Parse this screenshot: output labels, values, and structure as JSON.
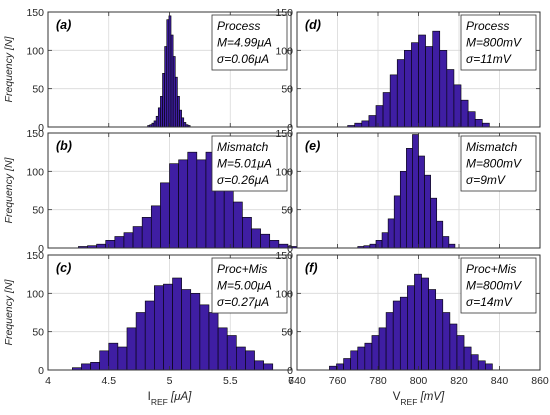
{
  "chart_data": [
    {
      "type": "bar",
      "panel_label": "(a)",
      "ylabel": "Frequency [N]",
      "xlim": [
        4,
        6
      ],
      "ylim": [
        0,
        150
      ],
      "yticks": [
        "0",
        "50",
        "100",
        "150"
      ],
      "grid": true,
      "annotation": [
        "Process",
        "M=4.99μA",
        "σ=0.06μA"
      ],
      "bin_edges_start": 4.82,
      "bin_width": 0.0175,
      "values": [
        2,
        3,
        5,
        8,
        14,
        25,
        40,
        70,
        105,
        140,
        145,
        120,
        92,
        65,
        40,
        22,
        12,
        6,
        3,
        2
      ]
    },
    {
      "type": "bar",
      "panel_label": "(b)",
      "ylabel": "Frequency [N]",
      "xlim": [
        4,
        6
      ],
      "ylim": [
        0,
        150
      ],
      "yticks": [
        "0",
        "50",
        "100",
        "150"
      ],
      "grid": true,
      "annotation": [
        "Mismatch",
        "M=5.01μA",
        "σ=0.26μA"
      ],
      "bin_edges_start": 4.25,
      "bin_width": 0.075,
      "values": [
        2,
        3,
        5,
        10,
        15,
        20,
        28,
        40,
        55,
        85,
        110,
        115,
        125,
        115,
        125,
        115,
        80,
        60,
        40,
        25,
        18,
        10,
        5,
        2
      ]
    },
    {
      "type": "bar",
      "panel_label": "(c)",
      "ylabel": "Frequency [N]",
      "xlabel": "I_REF [μA]",
      "xlim": [
        4,
        6
      ],
      "ylim": [
        0,
        150
      ],
      "xticks": [
        "4",
        "4.5",
        "5",
        "5.5",
        "6"
      ],
      "yticks": [
        "0",
        "50",
        "100",
        "150"
      ],
      "grid": true,
      "annotation": [
        "Proc+Mis",
        "M=5.00μA",
        "σ=0.27μA"
      ],
      "bin_edges_start": 4.2,
      "bin_width": 0.075,
      "values": [
        3,
        8,
        10,
        25,
        35,
        30,
        55,
        75,
        90,
        110,
        112,
        120,
        105,
        100,
        85,
        75,
        55,
        45,
        30,
        25,
        12,
        8
      ]
    },
    {
      "type": "bar",
      "panel_label": "(d)",
      "xlim": [
        740,
        860
      ],
      "ylim": [
        0,
        150
      ],
      "yticks": [
        "0",
        "50",
        "100",
        "150"
      ],
      "grid": true,
      "annotation": [
        "Process",
        "M=800mV",
        "σ=11mV"
      ],
      "bin_edges_start": 765,
      "bin_width": 3.5,
      "values": [
        2,
        5,
        8,
        15,
        28,
        45,
        68,
        88,
        100,
        110,
        120,
        105,
        125,
        100,
        75,
        55,
        35,
        20,
        10,
        5
      ]
    },
    {
      "type": "bar",
      "panel_label": "(e)",
      "xlim": [
        740,
        860
      ],
      "ylim": [
        0,
        150
      ],
      "yticks": [
        "0",
        "50",
        "100",
        "150"
      ],
      "grid": true,
      "annotation": [
        "Mismatch",
        "M=800mV",
        "σ=9mV"
      ],
      "bin_edges_start": 770,
      "bin_width": 3,
      "values": [
        2,
        3,
        5,
        10,
        20,
        38,
        68,
        100,
        130,
        148,
        120,
        95,
        65,
        35,
        15,
        5
      ]
    },
    {
      "type": "bar",
      "panel_label": "(f)",
      "xlabel": "V_REF [mV]",
      "xlim": [
        740,
        860
      ],
      "ylim": [
        0,
        150
      ],
      "xticks": [
        "740",
        "760",
        "780",
        "800",
        "820",
        "840",
        "860"
      ],
      "yticks": [
        "0",
        "50",
        "100",
        "150"
      ],
      "grid": true,
      "annotation": [
        "Proc+Mis",
        "M=800mV",
        "σ=14mV"
      ],
      "bin_edges_start": 756,
      "bin_width": 3.5,
      "values": [
        5,
        8,
        15,
        25,
        30,
        35,
        45,
        55,
        75,
        90,
        95,
        110,
        125,
        120,
        105,
        92,
        75,
        60,
        45,
        30,
        20,
        12,
        8
      ]
    }
  ]
}
